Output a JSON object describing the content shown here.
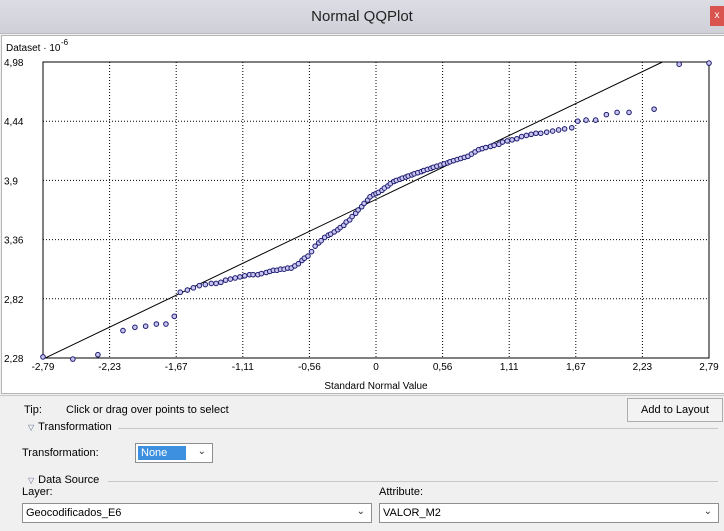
{
  "window": {
    "title": "Normal QQPlot",
    "close_label": "x"
  },
  "chart_data": {
    "type": "scatter",
    "ylabel": "Dataset · 10",
    "yexp": "-6",
    "xlabel": "Standard Normal Value",
    "x_ticks": [
      "-2,79",
      "-2,23",
      "-1,67",
      "-1,11",
      "-0,56",
      "0",
      "0,56",
      "1,11",
      "1,67",
      "2,23",
      "2,79"
    ],
    "y_ticks": [
      "4,98",
      "4,44",
      "3,9",
      "3,36",
      "2,82",
      "2,28"
    ],
    "xlim": [
      -2.79,
      2.79
    ],
    "ylim": [
      2.28,
      4.98
    ],
    "grid": true,
    "reference_line": {
      "x": [
        -2.79,
        2.4
      ],
      "y": [
        2.27,
        4.98
      ]
    },
    "points": [
      [
        -2.79,
        2.29
      ],
      [
        -2.54,
        2.27
      ],
      [
        -2.33,
        2.31
      ],
      [
        -2.12,
        2.53
      ],
      [
        -2.02,
        2.56
      ],
      [
        -1.93,
        2.57
      ],
      [
        -1.84,
        2.59
      ],
      [
        -1.76,
        2.59
      ],
      [
        -1.69,
        2.66
      ],
      [
        -1.64,
        2.88
      ],
      [
        -1.58,
        2.9
      ],
      [
        -1.53,
        2.92
      ],
      [
        -1.48,
        2.94
      ],
      [
        -1.43,
        2.95
      ],
      [
        -1.38,
        2.96
      ],
      [
        -1.34,
        2.96
      ],
      [
        -1.3,
        2.97
      ],
      [
        -1.26,
        2.99
      ],
      [
        -1.22,
        3.0
      ],
      [
        -1.18,
        3.01
      ],
      [
        -1.14,
        3.02
      ],
      [
        -1.1,
        3.03
      ],
      [
        -1.06,
        3.04
      ],
      [
        -1.03,
        3.04
      ],
      [
        -0.99,
        3.04
      ],
      [
        -0.96,
        3.05
      ],
      [
        -0.92,
        3.06
      ],
      [
        -0.89,
        3.07
      ],
      [
        -0.86,
        3.08
      ],
      [
        -0.83,
        3.08
      ],
      [
        -0.8,
        3.09
      ],
      [
        -0.77,
        3.09
      ],
      [
        -0.74,
        3.1
      ],
      [
        -0.71,
        3.1
      ],
      [
        -0.68,
        3.12
      ],
      [
        -0.65,
        3.14
      ],
      [
        -0.62,
        3.17
      ],
      [
        -0.6,
        3.19
      ],
      [
        -0.57,
        3.21
      ],
      [
        -0.54,
        3.25
      ],
      [
        -0.51,
        3.3
      ],
      [
        -0.48,
        3.33
      ],
      [
        -0.46,
        3.35
      ],
      [
        -0.43,
        3.38
      ],
      [
        -0.4,
        3.4
      ],
      [
        -0.38,
        3.41
      ],
      [
        -0.35,
        3.43
      ],
      [
        -0.32,
        3.45
      ],
      [
        -0.3,
        3.47
      ],
      [
        -0.27,
        3.49
      ],
      [
        -0.25,
        3.52
      ],
      [
        -0.22,
        3.54
      ],
      [
        -0.2,
        3.57
      ],
      [
        -0.17,
        3.6
      ],
      [
        -0.15,
        3.63
      ],
      [
        -0.12,
        3.66
      ],
      [
        -0.1,
        3.69
      ],
      [
        -0.07,
        3.72
      ],
      [
        -0.05,
        3.75
      ],
      [
        -0.02,
        3.77
      ],
      [
        0.0,
        3.78
      ],
      [
        0.02,
        3.79
      ],
      [
        0.05,
        3.81
      ],
      [
        0.07,
        3.83
      ],
      [
        0.1,
        3.85
      ],
      [
        0.12,
        3.87
      ],
      [
        0.15,
        3.89
      ],
      [
        0.17,
        3.9
      ],
      [
        0.2,
        3.91
      ],
      [
        0.22,
        3.92
      ],
      [
        0.25,
        3.93
      ],
      [
        0.27,
        3.94
      ],
      [
        0.3,
        3.95
      ],
      [
        0.32,
        3.96
      ],
      [
        0.35,
        3.97
      ],
      [
        0.38,
        3.98
      ],
      [
        0.4,
        3.99
      ],
      [
        0.43,
        4.0
      ],
      [
        0.46,
        4.01
      ],
      [
        0.48,
        4.02
      ],
      [
        0.51,
        4.03
      ],
      [
        0.54,
        4.04
      ],
      [
        0.57,
        4.05
      ],
      [
        0.6,
        4.06
      ],
      [
        0.62,
        4.07
      ],
      [
        0.65,
        4.08
      ],
      [
        0.68,
        4.09
      ],
      [
        0.71,
        4.1
      ],
      [
        0.74,
        4.11
      ],
      [
        0.77,
        4.12
      ],
      [
        0.8,
        4.14
      ],
      [
        0.83,
        4.16
      ],
      [
        0.86,
        4.18
      ],
      [
        0.89,
        4.19
      ],
      [
        0.92,
        4.2
      ],
      [
        0.96,
        4.21
      ],
      [
        0.99,
        4.22
      ],
      [
        1.03,
        4.23
      ],
      [
        1.06,
        4.25
      ],
      [
        1.1,
        4.26
      ],
      [
        1.14,
        4.27
      ],
      [
        1.18,
        4.28
      ],
      [
        1.22,
        4.3
      ],
      [
        1.26,
        4.31
      ],
      [
        1.3,
        4.32
      ],
      [
        1.34,
        4.33
      ],
      [
        1.38,
        4.33
      ],
      [
        1.43,
        4.34
      ],
      [
        1.48,
        4.35
      ],
      [
        1.53,
        4.36
      ],
      [
        1.58,
        4.37
      ],
      [
        1.64,
        4.38
      ],
      [
        1.69,
        4.44
      ],
      [
        1.76,
        4.45
      ],
      [
        1.84,
        4.45
      ],
      [
        1.93,
        4.5
      ],
      [
        2.02,
        4.52
      ],
      [
        2.12,
        4.52
      ],
      [
        2.33,
        4.55
      ],
      [
        2.54,
        4.96
      ],
      [
        2.79,
        4.97
      ]
    ]
  },
  "tip": {
    "label": "Tip:",
    "text": "Click or drag over points to select"
  },
  "add_to_layout": "Add to Layout",
  "transformation": {
    "section_title": "Transformation",
    "label": "Transformation:",
    "value": "None"
  },
  "data_source": {
    "section_title": "Data Source",
    "layer_label": "Layer:",
    "layer_value": "Geocodificados_E6",
    "attribute_label": "Attribute:",
    "attribute_value": "VALOR_M2"
  },
  "colors": {
    "point_fill": "#c9c4f0",
    "point_stroke": "#1b1b6e",
    "selection": "#3d8fe0"
  }
}
